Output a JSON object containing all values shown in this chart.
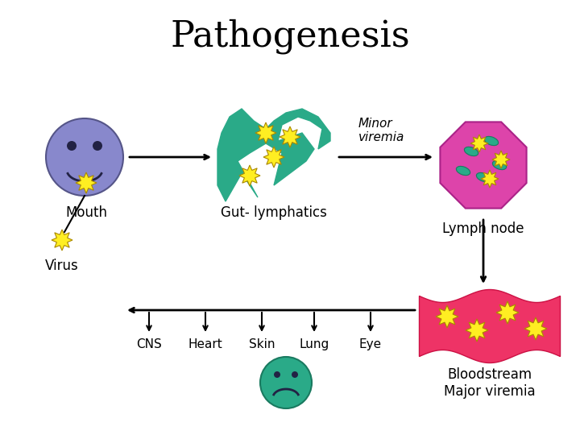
{
  "title": "Pathogenesis",
  "title_fontsize": 32,
  "title_font": "serif",
  "background_color": "#ffffff",
  "face_color_blue": "#8888cc",
  "face_color_teal": "#2aaa88",
  "lymph_node_color": "#dd44aa",
  "bloodstream_color": "#ee3366",
  "virus_color": "#ffee22",
  "lymph_oval_color": "#2aaa88",
  "labels": {
    "mouth": "Mouth",
    "virus": "Virus",
    "gut": "Gut- lymphatics",
    "minor_viremia": "Minor\nviremia",
    "lymph_node": "Lymph node",
    "cns": "CNS",
    "heart": "Heart",
    "skin": "Skin",
    "lung": "Lung",
    "eye": "Eye",
    "bloodstream": "Bloodstream\nMajor viremia"
  }
}
